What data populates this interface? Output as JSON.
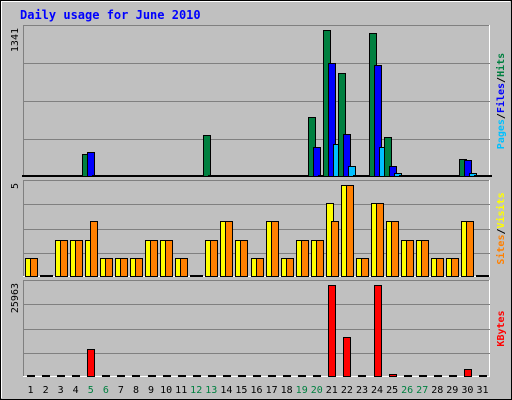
{
  "chart_data": {
    "type": "bar",
    "title": "Daily usage for June 2010",
    "categories": [
      "1",
      "2",
      "3",
      "4",
      "5",
      "6",
      "7",
      "8",
      "9",
      "10",
      "11",
      "12",
      "13",
      "14",
      "15",
      "16",
      "17",
      "18",
      "19",
      "20",
      "21",
      "22",
      "23",
      "24",
      "25",
      "26",
      "27",
      "28",
      "29",
      "30",
      "31"
    ],
    "weekend_days": [
      "5",
      "6",
      "12",
      "13",
      "19",
      "20",
      "26",
      "27"
    ],
    "panels": [
      {
        "id": "pages-files-hits",
        "y_max_label": "1341",
        "ylim": [
          0,
          1341
        ],
        "legend": [
          {
            "label": "Pages",
            "color": "#00c0ff"
          },
          {
            "label": "Files",
            "color": "#0000ff"
          },
          {
            "label": "Hits",
            "color": "#008040"
          }
        ],
        "series": [
          {
            "name": "Hits",
            "color": "#008040",
            "values": [
              0,
              0,
              0,
              0,
              200,
              0,
              0,
              0,
              0,
              0,
              0,
              0,
              380,
              0,
              0,
              0,
              0,
              0,
              0,
              540,
              1341,
              950,
              0,
              1310,
              360,
              0,
              0,
              0,
              0,
              160,
              0
            ]
          },
          {
            "name": "Files",
            "color": "#0000ff",
            "values": [
              0,
              0,
              0,
              0,
              220,
              0,
              0,
              0,
              0,
              0,
              0,
              0,
              0,
              0,
              0,
              0,
              0,
              0,
              0,
              270,
              1040,
              390,
              0,
              1020,
              90,
              0,
              0,
              0,
              0,
              150,
              0
            ]
          },
          {
            "name": "Pages",
            "color": "#00c0ff",
            "values": [
              0,
              0,
              0,
              0,
              0,
              0,
              0,
              0,
              0,
              0,
              0,
              0,
              0,
              0,
              0,
              0,
              0,
              0,
              0,
              0,
              290,
              90,
              0,
              270,
              25,
              0,
              0,
              0,
              0,
              30,
              0
            ]
          }
        ]
      },
      {
        "id": "visits-sites",
        "y_max_label": "5",
        "ylim": [
          0,
          5
        ],
        "legend": [
          {
            "label": "Sites",
            "color": "#ff8000"
          },
          {
            "label": "Visits",
            "color": "#ffff00"
          }
        ],
        "series": [
          {
            "name": "Visits",
            "color": "#ffff00",
            "values": [
              1,
              0,
              2,
              2,
              2,
              1,
              1,
              1,
              2,
              2,
              1,
              0,
              2,
              3,
              2,
              1,
              3,
              1,
              2,
              2,
              4,
              5,
              1,
              4,
              3,
              2,
              2,
              1,
              1,
              3,
              0
            ]
          },
          {
            "name": "Sites",
            "color": "#ff8000",
            "values": [
              1,
              0,
              2,
              2,
              3,
              1,
              1,
              1,
              2,
              2,
              1,
              0,
              2,
              3,
              2,
              1,
              3,
              1,
              2,
              2,
              3,
              5,
              1,
              4,
              3,
              2,
              2,
              1,
              1,
              3,
              0
            ]
          }
        ]
      },
      {
        "id": "kbytes",
        "y_max_label": "25963",
        "ylim": [
          0,
          25963
        ],
        "legend": [
          {
            "label": "KBytes",
            "color": "#ff0000"
          }
        ],
        "series": [
          {
            "name": "KBytes",
            "color": "#ff0000",
            "values": [
              0,
              0,
              0,
              0,
              7800,
              0,
              0,
              0,
              0,
              0,
              0,
              0,
              0,
              0,
              0,
              0,
              0,
              0,
              0,
              0,
              25963,
              11000,
              0,
              25963,
              500,
              0,
              0,
              0,
              0,
              2000,
              0
            ]
          }
        ]
      }
    ]
  }
}
